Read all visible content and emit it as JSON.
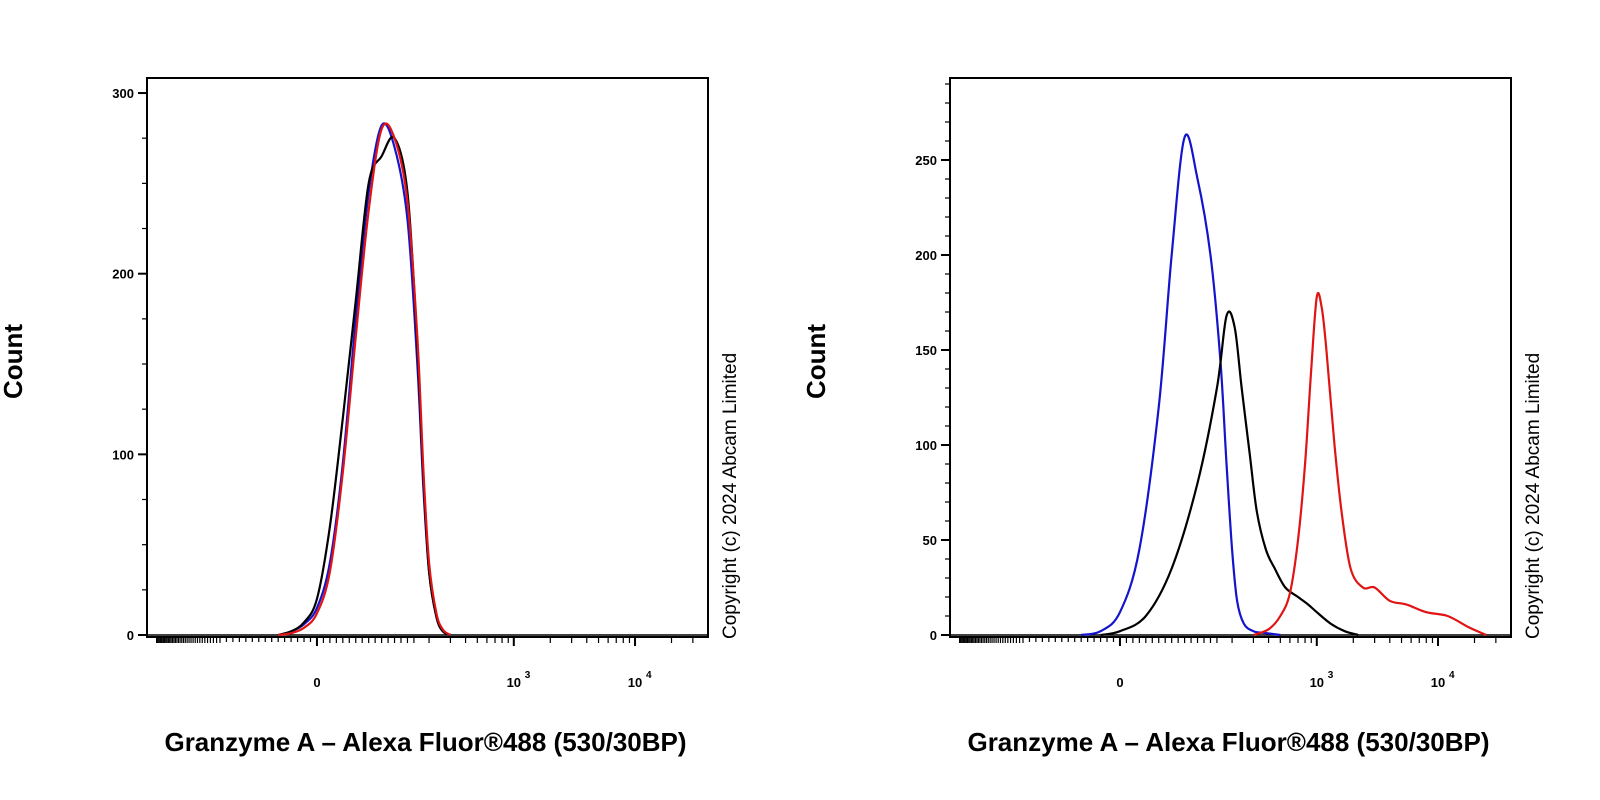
{
  "copyright": "Copyright (c) 2024 Abcam Limited",
  "chart_data": [
    {
      "type": "line",
      "title": "",
      "xlabel": "Granzyme A – Alexa Fluor®488 (530/30BP)",
      "ylabel": "Count",
      "x_scale": "logicle",
      "x_tick_labels": [
        {
          "value": 0,
          "base": "0",
          "exp": ""
        },
        {
          "value": 1000,
          "base": "10",
          "exp": "3"
        },
        {
          "value": 10000,
          "base": "10",
          "exp": "4"
        }
      ],
      "y_ticks": [
        0,
        100,
        200,
        300
      ],
      "ylim": [
        0,
        300
      ],
      "grid": false,
      "series": [
        {
          "color": "#1414cc",
          "x": [
            -60,
            -40,
            -20,
            0,
            20,
            40,
            60,
            80,
            100,
            120,
            140,
            160,
            180,
            200,
            230,
            260,
            300
          ],
          "y": [
            0,
            2,
            6,
            15,
            40,
            95,
            175,
            245,
            282,
            270,
            230,
            150,
            80,
            35,
            10,
            2,
            0
          ]
        },
        {
          "color": "#000000",
          "x": [
            -60,
            -40,
            -20,
            0,
            20,
            40,
            60,
            80,
            100,
            120,
            140,
            160,
            180,
            200,
            230,
            260,
            300
          ],
          "y": [
            0,
            2,
            7,
            20,
            60,
            120,
            185,
            250,
            265,
            275,
            245,
            160,
            85,
            35,
            10,
            2,
            0
          ]
        },
        {
          "color": "#e01414",
          "x": [
            -60,
            -40,
            -20,
            0,
            20,
            40,
            60,
            80,
            100,
            120,
            140,
            160,
            180,
            200,
            230,
            260,
            300
          ],
          "y": [
            0,
            1,
            4,
            12,
            35,
            90,
            165,
            235,
            280,
            275,
            240,
            165,
            90,
            40,
            12,
            3,
            0
          ]
        }
      ]
    },
    {
      "type": "line",
      "title": "",
      "xlabel": "Granzyme A – Alexa Fluor®488 (530/30BP)",
      "ylabel": "Count",
      "x_scale": "logicle",
      "x_tick_labels": [
        {
          "value": 0,
          "base": "0",
          "exp": ""
        },
        {
          "value": 1000,
          "base": "10",
          "exp": "3"
        },
        {
          "value": 10000,
          "base": "10",
          "exp": "4"
        }
      ],
      "y_ticks": [
        0,
        50,
        100,
        150,
        200,
        250
      ],
      "ylim": [
        0,
        290
      ],
      "grid": false,
      "series": [
        {
          "color": "#1414cc",
          "x": [
            -60,
            -30,
            0,
            30,
            60,
            80,
            100,
            120,
            140,
            160,
            180,
            200,
            220,
            250,
            300,
            380,
            500
          ],
          "y": [
            0,
            2,
            12,
            45,
            120,
            200,
            262,
            240,
            200,
            145,
            90,
            45,
            18,
            6,
            2,
            1,
            0
          ]
        },
        {
          "color": "#000000",
          "x": [
            -30,
            0,
            40,
            80,
            120,
            150,
            180,
            210,
            240,
            280,
            320,
            380,
            450,
            550,
            700,
            850,
            1000,
            1300,
            1700,
            2200
          ],
          "y": [
            0,
            2,
            10,
            35,
            80,
            130,
            168,
            162,
            130,
            95,
            65,
            45,
            35,
            25,
            20,
            16,
            12,
            6,
            2,
            0
          ]
        },
        {
          "color": "#e01414",
          "x": [
            300,
            400,
            500,
            600,
            700,
            800,
            900,
            1000,
            1100,
            1200,
            1400,
            1600,
            1900,
            2400,
            3000,
            4000,
            5500,
            8000,
            12000,
            18000,
            25000
          ],
          "y": [
            0,
            3,
            10,
            22,
            50,
            90,
            140,
            178,
            172,
            150,
            100,
            65,
            35,
            25,
            25,
            18,
            16,
            12,
            10,
            4,
            0
          ]
        }
      ]
    }
  ]
}
